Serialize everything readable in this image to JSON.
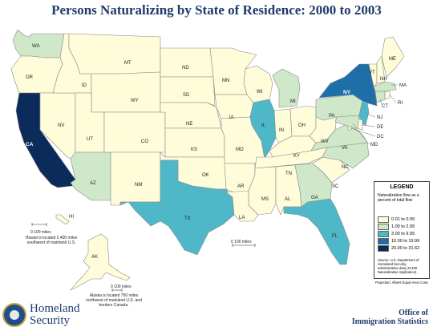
{
  "title": "Persons Naturalizing by State of Residence: 2000 to 2003",
  "colors": {
    "c1": "#fffcd9",
    "c2": "#cfe8c9",
    "c3": "#4fb8c8",
    "c4": "#1e6ea8",
    "c5": "#0b2b5a"
  },
  "states": {
    "WA": {
      "class": 2
    },
    "OR": {
      "class": 1
    },
    "CA": {
      "class": 5
    },
    "NV": {
      "class": 1
    },
    "ID": {
      "class": 1
    },
    "MT": {
      "class": 1
    },
    "WY": {
      "class": 1
    },
    "UT": {
      "class": 1
    },
    "AZ": {
      "class": 2
    },
    "CO": {
      "class": 1
    },
    "NM": {
      "class": 1
    },
    "ND": {
      "class": 1
    },
    "SD": {
      "class": 1
    },
    "NE": {
      "class": 1
    },
    "KS": {
      "class": 1
    },
    "OK": {
      "class": 1
    },
    "TX": {
      "class": 3
    },
    "MN": {
      "class": 1
    },
    "IA": {
      "class": 1
    },
    "MO": {
      "class": 1
    },
    "AR": {
      "class": 1
    },
    "LA": {
      "class": 1
    },
    "WI": {
      "class": 1
    },
    "IL": {
      "class": 3
    },
    "MI": {
      "class": 2
    },
    "IN": {
      "class": 1
    },
    "OH": {
      "class": 1
    },
    "KY": {
      "class": 1
    },
    "TN": {
      "class": 1
    },
    "MS": {
      "class": 1
    },
    "AL": {
      "class": 1
    },
    "GA": {
      "class": 2
    },
    "FL": {
      "class": 3
    },
    "SC": {
      "class": 1
    },
    "NC": {
      "class": 2
    },
    "VA": {
      "class": 2
    },
    "WV": {
      "class": 1
    },
    "PA": {
      "class": 2
    },
    "NY": {
      "class": 4
    },
    "VT": {
      "class": 1
    },
    "NH": {
      "class": 1
    },
    "ME": {
      "class": 1
    },
    "MA": {
      "class": 2
    },
    "RI": {
      "class": 1
    },
    "CT": {
      "class": 2
    },
    "NJ": {
      "class": 3
    },
    "DE": {
      "class": 1
    },
    "MD": {
      "class": 2
    },
    "DC": {
      "class": 1
    },
    "AK": {
      "class": 1
    },
    "HI": {
      "class": 1
    }
  },
  "labels": {
    "WA": "WA",
    "OR": "OR",
    "CA": "CA",
    "NV": "NV",
    "ID": "ID",
    "MT": "MT",
    "WY": "WY",
    "UT": "UT",
    "AZ": "AZ",
    "CO": "CO",
    "NM": "NM",
    "ND": "ND",
    "SD": "SD",
    "NE": "NE",
    "KS": "KS",
    "OK": "OK",
    "TX": "TX",
    "MN": "MN",
    "IA": "IA",
    "MO": "MO",
    "AR": "AR",
    "LA": "LA",
    "WI": "WI",
    "IL": "IL",
    "MI": "MI",
    "IN": "IN",
    "OH": "OH",
    "KY": "KY",
    "TN": "TN",
    "MS": "MS",
    "AL": "AL",
    "GA": "GA",
    "FL": "FL",
    "SC": "SC",
    "NC": "NC",
    "VA": "VA",
    "WV": "WV",
    "PA": "PA",
    "NY": "NY",
    "VT": "VT",
    "NH": "NH",
    "ME": "ME",
    "MA": "MA",
    "RI": "RI",
    "CT": "CT",
    "NJ": "NJ",
    "DE": "DE",
    "MD": "MD",
    "DC": "DC",
    "AK": "AK",
    "HI": "HI"
  },
  "legend": {
    "title": "LEGEND",
    "subtitle": "Naturalization flow as a percent of total flow",
    "items": [
      {
        "label": "0.01 to 0.99",
        "class": 1
      },
      {
        "label": "1.00 to 2.99",
        "class": 2
      },
      {
        "label": "3.00 to 9.99",
        "class": 3
      },
      {
        "label": "10.00 to 19.99",
        "class": 4
      },
      {
        "label": "20.00 to 31.62",
        "class": 5
      }
    ],
    "source": "Source: U.S. Department of Homeland Security, administrative data (N-400 Naturalization Application)",
    "projection": "Projection: Albers Equal Area Conic"
  },
  "notes": {
    "hawaii": "Hawaii is located 2,400 miles southwest of mainland U.S.",
    "alaska": "Alaska is located 750 miles northwest of mainland U.S. and borders Canada.",
    "scale_main": "0     100 miles",
    "scale_hi": "0    100 miles",
    "scale_ak": "0 100 miles"
  },
  "footer": {
    "agency_line1": "Homeland",
    "agency_line2": "Security",
    "office_line1": "Office of",
    "office_line2": "Immigration Statistics"
  }
}
